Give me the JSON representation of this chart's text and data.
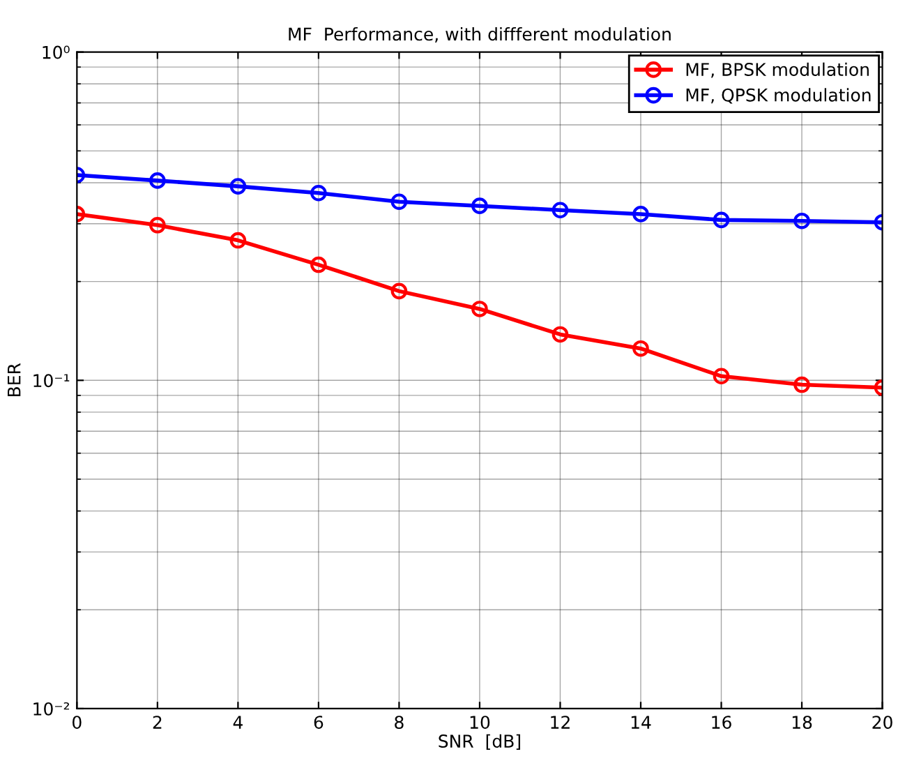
{
  "chart_data": {
    "type": "line",
    "title": "MF  Performance, with diffferent modulation",
    "xlabel": "SNR  [dB]",
    "ylabel": "BER",
    "x": [
      0,
      2,
      4,
      6,
      8,
      10,
      12,
      14,
      16,
      18,
      20
    ],
    "series": [
      {
        "name": "MF, BPSK modulation",
        "color": "#ff0000",
        "values": [
          0.321,
          0.297,
          0.267,
          0.225,
          0.187,
          0.165,
          0.138,
          0.125,
          0.103,
          0.097,
          0.095
        ]
      },
      {
        "name": "MF, QPSK modulation",
        "color": "#0000ff",
        "values": [
          0.422,
          0.406,
          0.39,
          0.372,
          0.35,
          0.34,
          0.33,
          0.321,
          0.308,
          0.306,
          0.303
        ]
      }
    ],
    "log": "y",
    "xlim": [
      0,
      20
    ],
    "ylim": [
      0.01,
      1
    ],
    "xticks": [
      0,
      2,
      4,
      6,
      8,
      10,
      12,
      14,
      16,
      18,
      20
    ],
    "yticks": [
      {
        "value": 0.01,
        "label": "10⁻²"
      },
      {
        "value": 0.1,
        "label": "10⁻¹"
      },
      {
        "value": 1,
        "label": "10⁰"
      }
    ],
    "grid": true,
    "legend": "top right",
    "marker": "circle",
    "line_style": "solid"
  }
}
